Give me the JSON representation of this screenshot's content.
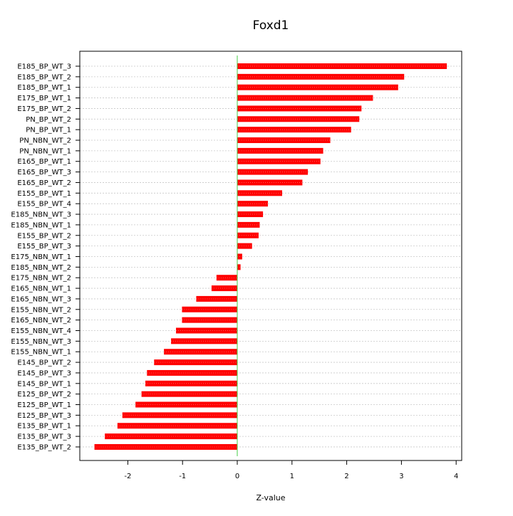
{
  "chart_data": {
    "type": "bar",
    "orientation": "horizontal",
    "title": "Foxd1",
    "xlabel": "Z-value",
    "ylabel": "",
    "xlim": [
      -2.78,
      4.05
    ],
    "xticks": [
      -2,
      -1,
      0,
      1,
      2,
      3,
      4
    ],
    "grid": "horizontal dashed",
    "bar_color": "#ff0000",
    "zero_line_color": "#44cc44",
    "categories": [
      "E185_BP_WT_3",
      "E185_BP_WT_2",
      "E185_BP_WT_1",
      "E175_BP_WT_1",
      "E175_BP_WT_2",
      "PN_BP_WT_2",
      "PN_BP_WT_1",
      "PN_NBN_WT_2",
      "PN_NBN_WT_1",
      "E165_BP_WT_1",
      "E165_BP_WT_3",
      "E165_BP_WT_2",
      "E155_BP_WT_1",
      "E155_BP_WT_4",
      "E185_NBN_WT_3",
      "E185_NBN_WT_1",
      "E155_BP_WT_2",
      "E155_BP_WT_3",
      "E175_NBN_WT_1",
      "E185_NBN_WT_2",
      "E175_NBN_WT_2",
      "E165_NBN_WT_1",
      "E165_NBN_WT_3",
      "E155_NBN_WT_2",
      "E165_NBN_WT_2",
      "E155_NBN_WT_4",
      "E155_NBN_WT_3",
      "E155_NBN_WT_1",
      "E145_BP_WT_2",
      "E145_BP_WT_3",
      "E145_BP_WT_1",
      "E125_BP_WT_2",
      "E125_BP_WT_1",
      "E125_BP_WT_3",
      "E135_BP_WT_1",
      "E135_BP_WT_3",
      "E135_BP_WT_2"
    ],
    "values": [
      3.83,
      3.05,
      2.94,
      2.48,
      2.27,
      2.23,
      2.08,
      1.7,
      1.57,
      1.52,
      1.29,
      1.19,
      0.82,
      0.56,
      0.47,
      0.41,
      0.39,
      0.27,
      0.09,
      0.06,
      -0.38,
      -0.47,
      -0.75,
      -1.01,
      -1.01,
      -1.12,
      -1.21,
      -1.34,
      -1.52,
      -1.65,
      -1.68,
      -1.75,
      -1.86,
      -2.1,
      -2.19,
      -2.42,
      -2.61
    ]
  }
}
